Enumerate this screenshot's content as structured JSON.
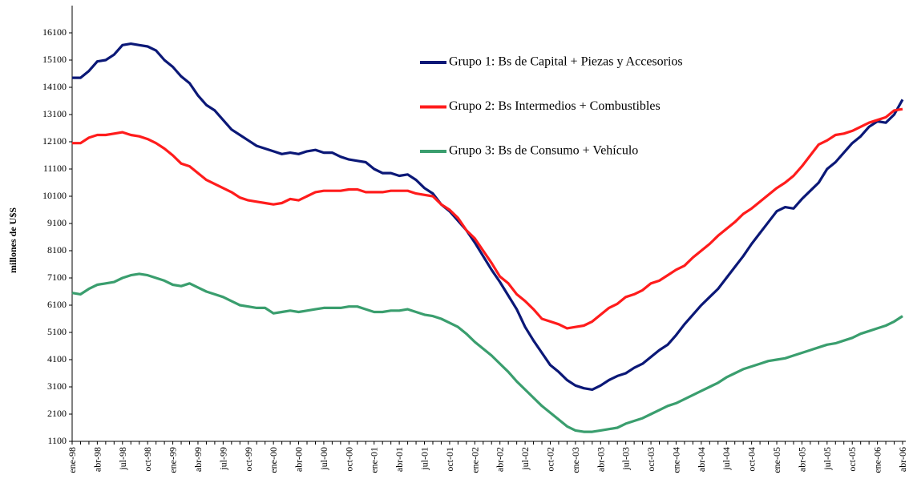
{
  "chart_data": {
    "type": "line",
    "y_label": "millones de U$S",
    "categories": [
      "ene-98",
      null,
      null,
      "abr-98",
      null,
      null,
      "jul-98",
      null,
      null,
      "oct-98",
      null,
      null,
      "ene-99",
      null,
      null,
      "abr-99",
      null,
      null,
      "jul-99",
      null,
      null,
      "oct-99",
      null,
      null,
      "ene-00",
      null,
      null,
      "abr-00",
      null,
      null,
      "jul-00",
      null,
      null,
      "oct-00",
      null,
      null,
      "ene-01",
      null,
      null,
      "abr-01",
      null,
      null,
      "jul-01",
      null,
      null,
      "oct-01",
      null,
      null,
      "ene-02",
      null,
      null,
      "abr-02",
      null,
      null,
      "jul-02",
      null,
      null,
      "oct-02",
      null,
      null,
      "ene-03",
      null,
      null,
      "abr-03",
      null,
      null,
      "jul-03",
      null,
      null,
      "oct-03",
      null,
      null,
      "ene-04",
      null,
      null,
      "abr-04",
      null,
      null,
      "jul-04",
      null,
      null,
      "oct-04",
      null,
      null,
      "ene-05",
      null,
      null,
      "abr-05",
      null,
      null,
      "jul-05",
      null,
      null,
      "oct-05",
      null,
      null,
      "ene-06",
      null,
      null,
      "abr-06"
    ],
    "series": [
      {
        "name": "Grupo 1: Bs de Capital + Piezas y Accesorios",
        "color": "#0b1877",
        "values": [
          14450,
          14450,
          14700,
          15050,
          15100,
          15300,
          15650,
          15700,
          15650,
          15600,
          15450,
          15100,
          14850,
          14500,
          14250,
          13800,
          13450,
          13250,
          12900,
          12550,
          12350,
          12150,
          11950,
          11850,
          11750,
          11650,
          11700,
          11650,
          11750,
          11800,
          11700,
          11700,
          11550,
          11450,
          11400,
          11350,
          11100,
          10950,
          10950,
          10850,
          10900,
          10700,
          10400,
          10200,
          9800,
          9550,
          9200,
          8850,
          8400,
          7900,
          7400,
          6950,
          6450,
          5950,
          5300,
          4800,
          4350,
          3900,
          3650,
          3350,
          3150,
          3050,
          3000,
          3150,
          3350,
          3500,
          3600,
          3800,
          3950,
          4200,
          4450,
          4650,
          5000,
          5400,
          5750,
          6100,
          6400,
          6700,
          7100,
          7500,
          7900,
          8350,
          8750,
          9150,
          9550,
          9700,
          9650,
          10000,
          10300,
          10600,
          11100,
          11350,
          11700,
          12050,
          12300,
          12650,
          12850,
          12800,
          13100,
          13650
        ]
      },
      {
        "name": "Grupo 2: Bs Intermedios + Combustibles",
        "color": "#ff1c1c",
        "values": [
          12050,
          12050,
          12250,
          12350,
          12350,
          12400,
          12450,
          12350,
          12300,
          12200,
          12050,
          11850,
          11600,
          11300,
          11200,
          10950,
          10700,
          10550,
          10400,
          10250,
          10050,
          9950,
          9900,
          9850,
          9800,
          9850,
          10000,
          9950,
          10100,
          10250,
          10300,
          10300,
          10300,
          10350,
          10350,
          10250,
          10250,
          10250,
          10300,
          10300,
          10300,
          10200,
          10150,
          10100,
          9800,
          9600,
          9300,
          8850,
          8550,
          8100,
          7650,
          7150,
          6900,
          6500,
          6250,
          5950,
          5600,
          5500,
          5400,
          5250,
          5300,
          5350,
          5500,
          5750,
          6000,
          6150,
          6400,
          6500,
          6650,
          6900,
          7000,
          7200,
          7400,
          7550,
          7850,
          8100,
          8350,
          8650,
          8900,
          9150,
          9450,
          9650,
          9900,
          10150,
          10400,
          10600,
          10850,
          11200,
          11600,
          12000,
          12150,
          12350,
          12400,
          12500,
          12650,
          12800,
          12900,
          13000,
          13250,
          13300
        ]
      },
      {
        "name": "Grupo 3: Bs de Consumo + Vehículo",
        "color": "#3a9e6e",
        "values": [
          6550,
          6500,
          6700,
          6850,
          6900,
          6950,
          7100,
          7200,
          7250,
          7200,
          7100,
          7000,
          6850,
          6800,
          6900,
          6750,
          6600,
          6500,
          6400,
          6250,
          6100,
          6050,
          6000,
          6000,
          5800,
          5850,
          5900,
          5850,
          5900,
          5950,
          6000,
          6000,
          6000,
          6050,
          6050,
          5950,
          5850,
          5850,
          5900,
          5900,
          5950,
          5850,
          5750,
          5700,
          5600,
          5450,
          5300,
          5050,
          4750,
          4500,
          4250,
          3950,
          3650,
          3300,
          3000,
          2700,
          2400,
          2150,
          1900,
          1650,
          1500,
          1450,
          1450,
          1500,
          1550,
          1600,
          1750,
          1850,
          1950,
          2100,
          2250,
          2400,
          2500,
          2650,
          2800,
          2950,
          3100,
          3250,
          3450,
          3600,
          3750,
          3850,
          3950,
          4050,
          4100,
          4150,
          4250,
          4350,
          4450,
          4550,
          4650,
          4700,
          4800,
          4900,
          5050,
          5150,
          5250,
          5350,
          5500,
          5700
        ]
      }
    ],
    "ylim": [
      1100,
      17100
    ],
    "yticks": [
      1100,
      2100,
      3100,
      4100,
      5100,
      6100,
      7100,
      8100,
      9100,
      10100,
      11100,
      12100,
      13100,
      14100,
      15100,
      16100
    ]
  }
}
